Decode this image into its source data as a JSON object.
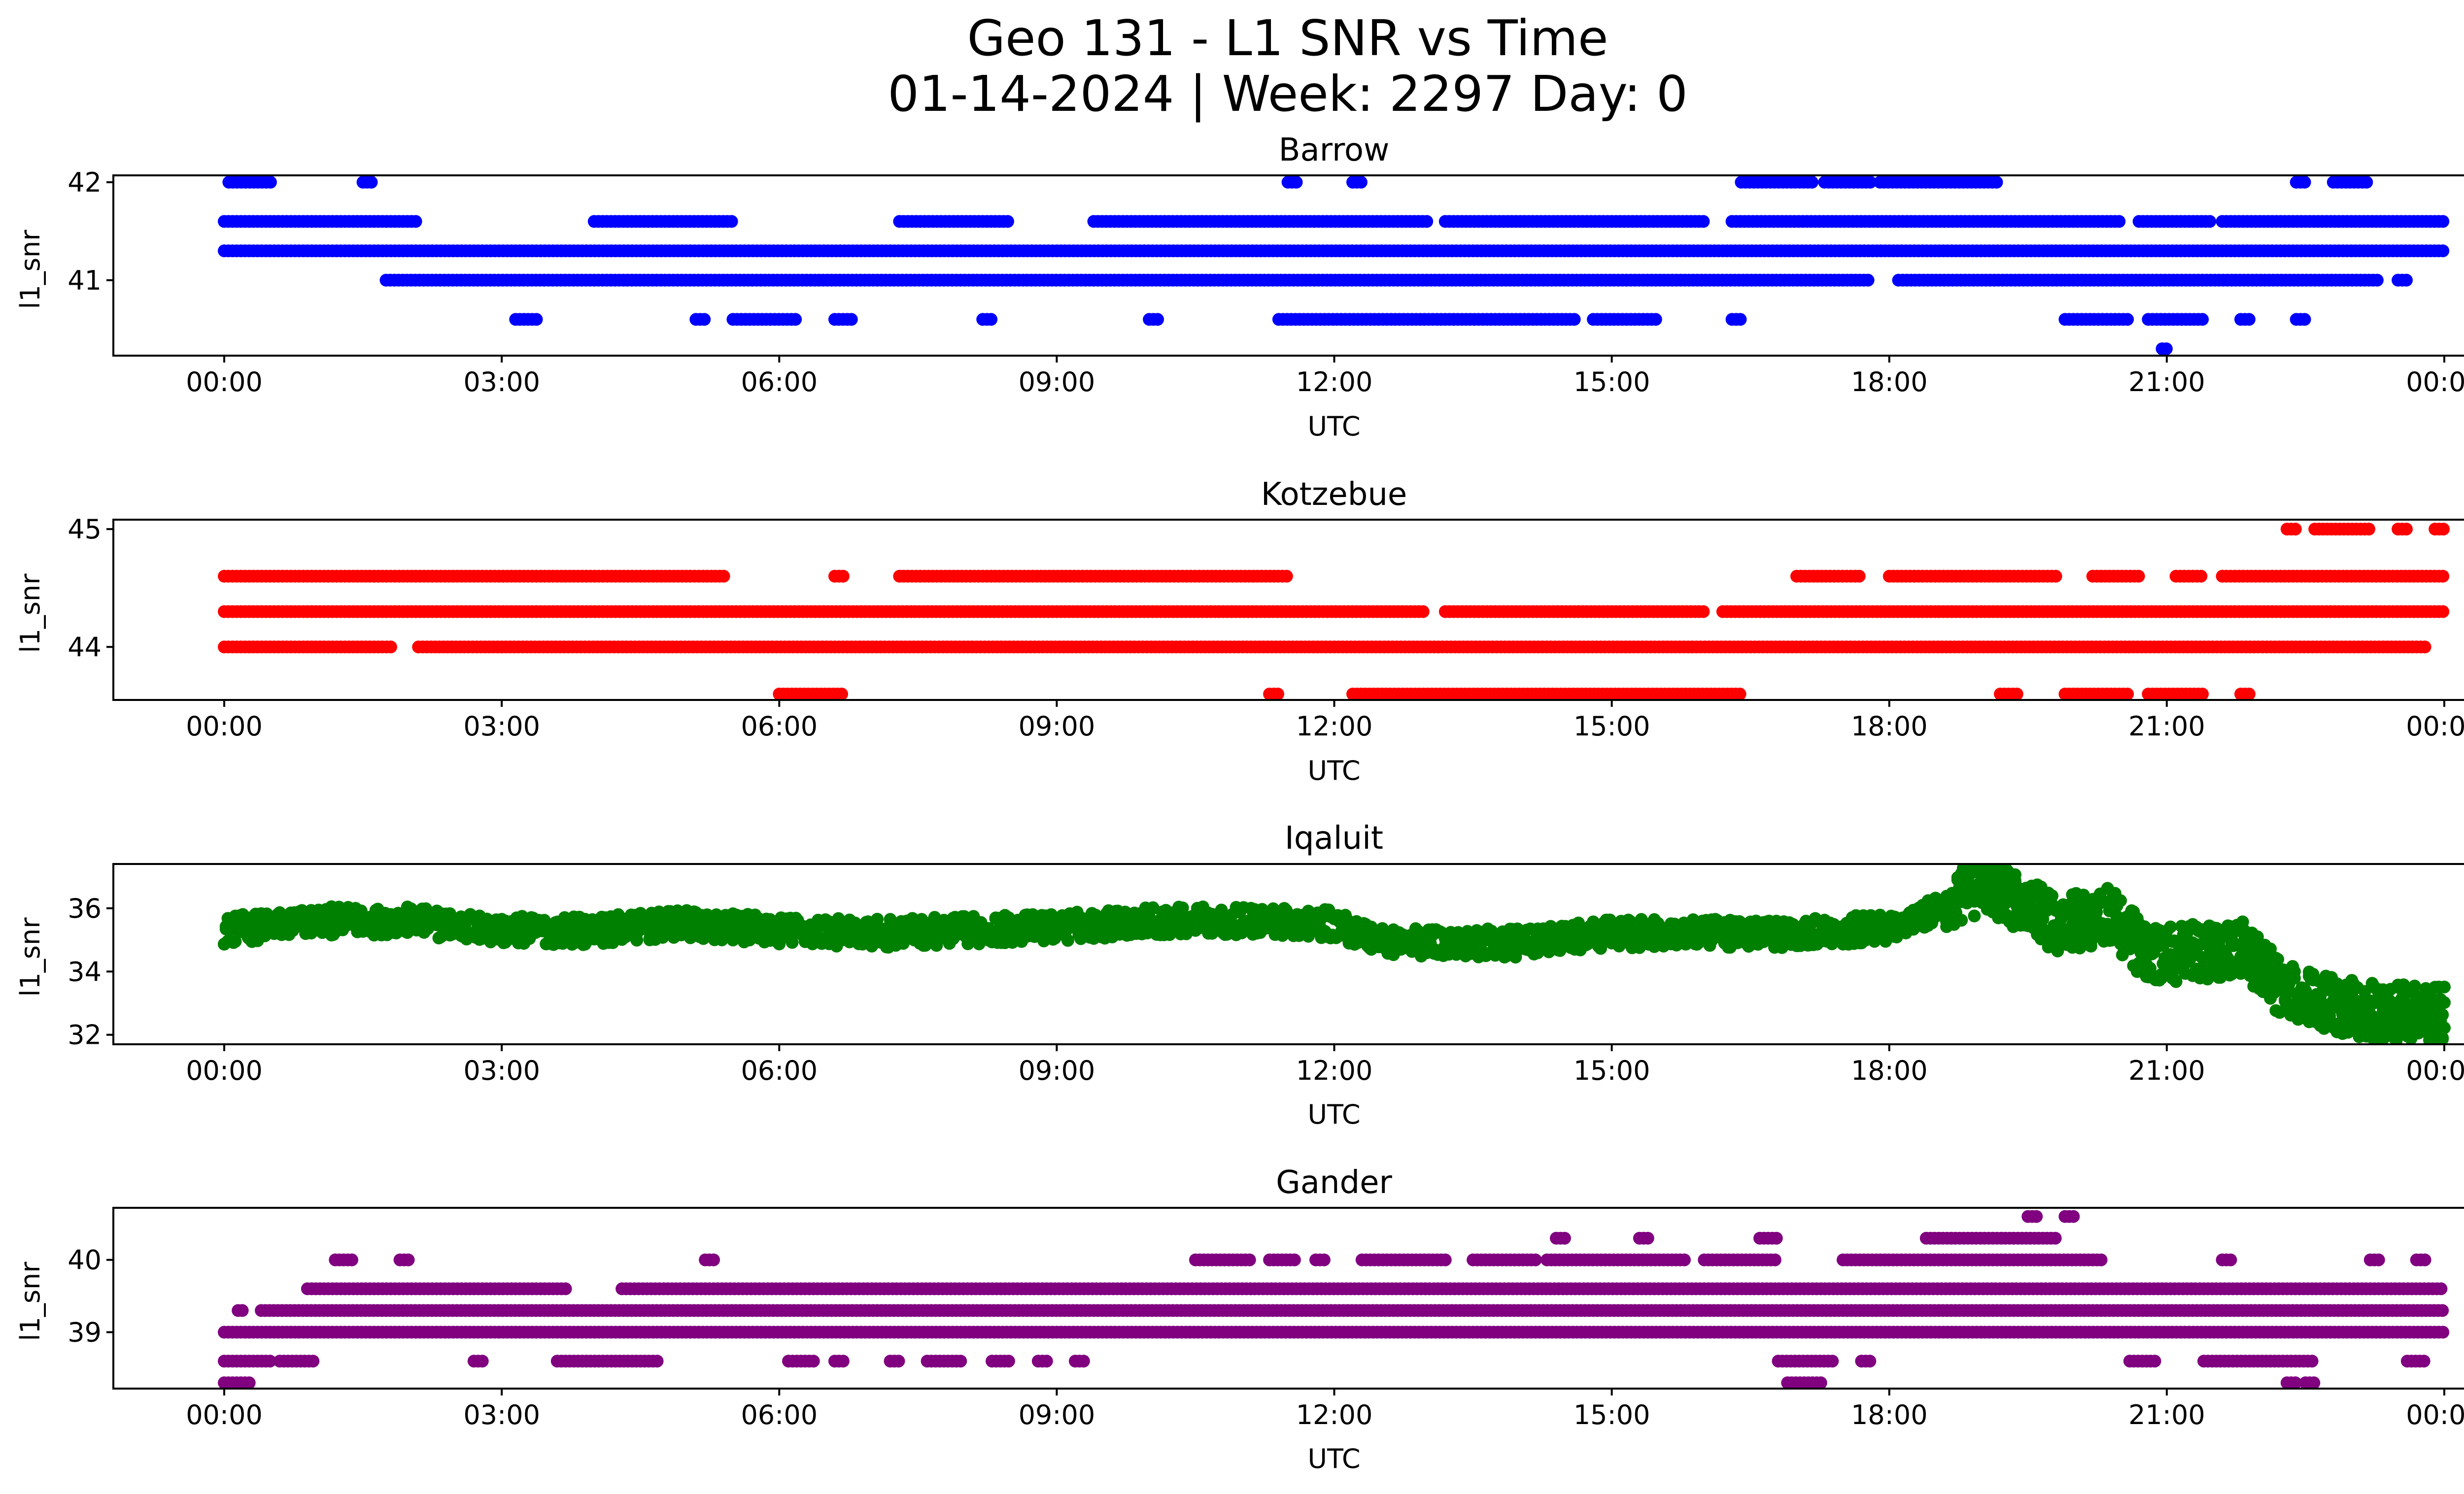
{
  "title_line1": "Geo 131 - L1 SNR vs Time",
  "title_line2": "01-14-2024 | Week: 2297 Day: 0",
  "chart_data": [
    {
      "type": "scatter",
      "title": "Barrow",
      "xlabel": "UTC",
      "ylabel": "l1_snr",
      "color": "#0000ff",
      "xticks": [
        "00:00",
        "03:00",
        "06:00",
        "09:00",
        "12:00",
        "15:00",
        "18:00",
        "21:00",
        "00:00"
      ],
      "yticks": [
        41,
        42
      ],
      "ylim": [
        40.23,
        42.07
      ],
      "levels": [
        {
          "y": 42.0,
          "intervals": [
            [
              0.05,
              0.5
            ],
            [
              1.5,
              1.6
            ],
            [
              11.5,
              11.6
            ],
            [
              12.2,
              12.3
            ],
            [
              16.4,
              17.2
            ],
            [
              17.3,
              17.8
            ],
            [
              17.9,
              19.2
            ],
            [
              22.4,
              22.5
            ],
            [
              22.8,
              23.2
            ]
          ]
        },
        {
          "y": 41.6,
          "intervals": [
            [
              0,
              2.1
            ],
            [
              4,
              5.5
            ],
            [
              7.3,
              8.5
            ],
            [
              9.4,
              13
            ],
            [
              13.2,
              16
            ],
            [
              16.3,
              20.5
            ],
            [
              20.7,
              21.5
            ],
            [
              21.6,
              24
            ]
          ]
        },
        {
          "y": 41.3,
          "intervals": [
            [
              0,
              24
            ]
          ]
        },
        {
          "y": 41.0,
          "intervals": [
            [
              1.75,
              17.8
            ],
            [
              18.1,
              23.3
            ],
            [
              23.5,
              23.6
            ]
          ]
        },
        {
          "y": 40.6,
          "intervals": [
            [
              3.15,
              3.4
            ],
            [
              5.1,
              5.2
            ],
            [
              5.5,
              6.2
            ],
            [
              6.6,
              6.8
            ],
            [
              8.2,
              8.3
            ],
            [
              10.0,
              10.1
            ],
            [
              11.4,
              14.6
            ],
            [
              14.8,
              15.5
            ],
            [
              16.3,
              16.4
            ],
            [
              19.9,
              20.6
            ],
            [
              20.8,
              21.4
            ],
            [
              21.8,
              21.9
            ],
            [
              22.4,
              22.5
            ]
          ]
        },
        {
          "y": 40.3,
          "intervals": [
            [
              20.95,
              21.0
            ]
          ]
        }
      ]
    },
    {
      "type": "scatter",
      "title": "Kotzebue",
      "xlabel": "UTC",
      "ylabel": "l1_snr",
      "color": "#ff0000",
      "xticks": [
        "00:00",
        "03:00",
        "06:00",
        "09:00",
        "12:00",
        "15:00",
        "18:00",
        "21:00",
        "00:00"
      ],
      "yticks": [
        44,
        45
      ],
      "ylim": [
        43.55,
        45.08
      ],
      "levels": [
        {
          "y": 45.0,
          "intervals": [
            [
              22.3,
              22.4
            ],
            [
              22.6,
              23.2
            ],
            [
              23.5,
              23.6
            ],
            [
              23.9,
              24
            ]
          ]
        },
        {
          "y": 44.6,
          "intervals": [
            [
              0,
              5.4
            ],
            [
              6.6,
              6.7
            ],
            [
              7.3,
              11.5
            ],
            [
              17,
              17.7
            ],
            [
              18,
              19.8
            ],
            [
              20.2,
              20.7
            ],
            [
              21.1,
              21.4
            ],
            [
              21.6,
              24
            ]
          ]
        },
        {
          "y": 44.3,
          "intervals": [
            [
              0,
              13
            ],
            [
              13.2,
              16
            ],
            [
              16.2,
              24
            ]
          ]
        },
        {
          "y": 44.0,
          "intervals": [
            [
              0,
              1.8
            ],
            [
              2.1,
              23.8
            ]
          ]
        },
        {
          "y": 43.6,
          "intervals": [
            [
              6.0,
              6.7
            ],
            [
              11.3,
              11.4
            ],
            [
              12.2,
              16.4
            ],
            [
              19.2,
              19.4
            ],
            [
              19.9,
              20.6
            ],
            [
              20.8,
              21.4
            ],
            [
              21.8,
              21.9
            ]
          ]
        }
      ]
    },
    {
      "type": "scatter",
      "title": "Iqaluit",
      "xlabel": "UTC",
      "ylabel": "l1_snr",
      "color": "#008000",
      "xticks": [
        "00:00",
        "03:00",
        "06:00",
        "09:00",
        "12:00",
        "15:00",
        "18:00",
        "21:00",
        "00:00"
      ],
      "yticks": [
        32,
        34,
        36
      ],
      "ylim": [
        31.7,
        37.4
      ],
      "profile": [
        [
          0,
          35.3
        ],
        [
          1,
          35.6
        ],
        [
          2,
          35.6
        ],
        [
          3,
          35.3
        ],
        [
          4,
          35.3
        ],
        [
          5,
          35.5
        ],
        [
          6,
          35.3
        ],
        [
          7,
          35.2
        ],
        [
          8,
          35.3
        ],
        [
          9,
          35.4
        ],
        [
          10,
          35.6
        ],
        [
          11,
          35.6
        ],
        [
          12,
          35.5
        ],
        [
          12.5,
          35
        ],
        [
          13,
          34.9
        ],
        [
          14,
          34.9
        ],
        [
          15,
          35.2
        ],
        [
          16,
          35.2
        ],
        [
          17,
          35.2
        ],
        [
          18,
          35.4
        ],
        [
          18.6,
          36
        ],
        [
          19,
          36.8
        ],
        [
          19.4,
          36.2
        ],
        [
          19.8,
          35.5
        ],
        [
          20.4,
          35.8
        ],
        [
          20.8,
          34.5
        ],
        [
          21.3,
          34.6
        ],
        [
          21.8,
          34.8
        ],
        [
          22.3,
          33.3
        ],
        [
          22.8,
          33
        ],
        [
          23.3,
          32.7
        ],
        [
          24,
          32.7
        ]
      ]
    },
    {
      "type": "scatter",
      "title": "Gander",
      "xlabel": "UTC",
      "ylabel": "l1_snr",
      "color": "#800080",
      "xticks": [
        "00:00",
        "03:00",
        "06:00",
        "09:00",
        "12:00",
        "15:00",
        "18:00",
        "21:00",
        "00:00"
      ],
      "yticks": [
        39,
        40
      ],
      "ylim": [
        38.22,
        40.72
      ],
      "levels": [
        {
          "y": 40.6,
          "intervals": [
            [
              19.5,
              19.6
            ],
            [
              19.9,
              20
            ]
          ]
        },
        {
          "y": 40.3,
          "intervals": [
            [
              14.4,
              14.5
            ],
            [
              15.3,
              15.4
            ],
            [
              16.6,
              16.8
            ],
            [
              18.4,
              19.8
            ]
          ]
        },
        {
          "y": 40.0,
          "intervals": [
            [
              1.2,
              1.4
            ],
            [
              1.9,
              2
            ],
            [
              5.2,
              5.3
            ],
            [
              10.5,
              11.1
            ],
            [
              11.3,
              11.6
            ],
            [
              11.8,
              11.9
            ],
            [
              12.3,
              13.2
            ],
            [
              13.5,
              14.2
            ],
            [
              14.3,
              15.8
            ],
            [
              16,
              16.8
            ],
            [
              17.5,
              20.3
            ],
            [
              21.6,
              21.7
            ],
            [
              23.2,
              23.3
            ],
            [
              23.7,
              23.8
            ]
          ]
        },
        {
          "y": 39.6,
          "intervals": [
            [
              0.9,
              3.7
            ],
            [
              4.3,
              24
            ]
          ]
        },
        {
          "y": 39.3,
          "intervals": [
            [
              0.15,
              0.2
            ],
            [
              0.4,
              24
            ]
          ]
        },
        {
          "y": 39.0,
          "intervals": [
            [
              0,
              24
            ]
          ]
        },
        {
          "y": 38.6,
          "intervals": [
            [
              0,
              0.5
            ],
            [
              0.6,
              1.0
            ],
            [
              2.7,
              2.8
            ],
            [
              3.6,
              4.7
            ],
            [
              6.1,
              6.4
            ],
            [
              6.6,
              6.7
            ],
            [
              7.2,
              7.3
            ],
            [
              7.6,
              8.0
            ],
            [
              8.3,
              8.5
            ],
            [
              8.8,
              8.9
            ],
            [
              9.2,
              9.3
            ],
            [
              16.8,
              17.4
            ],
            [
              17.7,
              17.8
            ],
            [
              20.6,
              20.9
            ],
            [
              21.4,
              22.6
            ],
            [
              23.6,
              23.8
            ]
          ]
        },
        {
          "y": 38.3,
          "intervals": [
            [
              0.0,
              0.3
            ],
            [
              16.9,
              17.3
            ],
            [
              22.3,
              22.4
            ],
            [
              22.5,
              22.6
            ]
          ]
        }
      ]
    }
  ]
}
